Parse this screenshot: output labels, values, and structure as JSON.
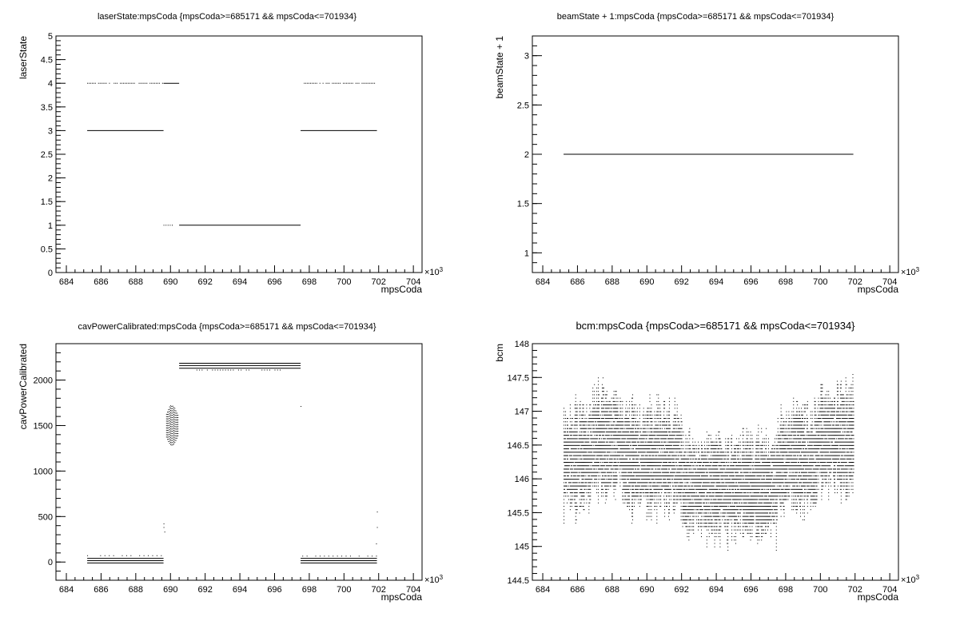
{
  "chart_data": [
    {
      "type": "scatter",
      "title": "laserState:mpsCoda {mpsCoda>=685171 && mpsCoda<=701934}",
      "xlabel": "mpsCoda",
      "ylabel": "laserState",
      "x_exponent": "×10",
      "x_exponent_power": "3",
      "xlim": [
        683.4,
        704.5
      ],
      "ylim": [
        0,
        5
      ],
      "x_ticks": [
        "684",
        "686",
        "688",
        "690",
        "692",
        "694",
        "696",
        "698",
        "700",
        "702",
        "704"
      ],
      "y_ticks": [
        "0",
        "0.5",
        "1",
        "1.5",
        "2",
        "2.5",
        "3",
        "3.5",
        "4",
        "4.5",
        "5"
      ],
      "segments": [
        {
          "x0": 685.2,
          "x1": 689.6,
          "y": 3
        },
        {
          "x0": 690.5,
          "x1": 697.5,
          "y": 1
        },
        {
          "x0": 697.5,
          "x1": 701.9,
          "y": 3
        },
        {
          "x0": 689.6,
          "x1": 690.5,
          "y": 4
        }
      ],
      "dotted_ranges": [
        {
          "x0": 685.2,
          "x1": 689.6,
          "y": 4,
          "step": 0.09
        },
        {
          "x0": 697.6,
          "x1": 701.9,
          "y": 4,
          "step": 0.09
        },
        {
          "x0": 689.6,
          "x1": 690.2,
          "y": 1,
          "step": 0.12
        }
      ]
    },
    {
      "type": "scatter",
      "title": "beamState + 1:mpsCoda {mpsCoda>=685171 && mpsCoda<=701934}",
      "xlabel": "mpsCoda",
      "ylabel": "beamState + 1",
      "x_exponent": "×10",
      "x_exponent_power": "3",
      "xlim": [
        683.4,
        704.5
      ],
      "ylim": [
        0.8,
        3.2
      ],
      "x_ticks": [
        "684",
        "686",
        "688",
        "690",
        "692",
        "694",
        "696",
        "698",
        "700",
        "702",
        "704"
      ],
      "y_ticks": [
        "1",
        "1.5",
        "2",
        "2.5",
        "3"
      ],
      "segments": [
        {
          "x0": 685.2,
          "x1": 701.9,
          "y": 2
        }
      ],
      "dotted_ranges": []
    },
    {
      "type": "scatter",
      "title": "cavPowerCalibrated:mpsCoda {mpsCoda>=685171 && mpsCoda<=701934}",
      "xlabel": "mpsCoda",
      "ylabel": "cavPowerCalibrated",
      "x_exponent": "×10",
      "x_exponent_power": "3",
      "xlim": [
        683.4,
        704.5
      ],
      "ylim": [
        -200,
        2400
      ],
      "x_ticks": [
        "684",
        "686",
        "688",
        "690",
        "692",
        "694",
        "696",
        "698",
        "700",
        "702",
        "704"
      ],
      "y_ticks": [
        "0",
        "500",
        "1000",
        "1500",
        "2000"
      ],
      "y_tick_values": [
        0,
        500,
        1000,
        1500,
        2000
      ],
      "segments": [
        {
          "x0": 685.2,
          "x1": 689.6,
          "y": -10
        },
        {
          "x0": 685.2,
          "x1": 689.6,
          "y": 15
        },
        {
          "x0": 685.2,
          "x1": 689.6,
          "y": 40
        },
        {
          "x0": 690.5,
          "x1": 697.5,
          "y": 2130
        },
        {
          "x0": 690.5,
          "x1": 697.5,
          "y": 2160
        },
        {
          "x0": 690.5,
          "x1": 697.5,
          "y": 2185
        },
        {
          "x0": 697.5,
          "x1": 701.9,
          "y": -10
        },
        {
          "x0": 697.5,
          "x1": 701.9,
          "y": 15
        },
        {
          "x0": 697.5,
          "x1": 701.9,
          "y": 40
        }
      ],
      "dotted_ranges": [
        {
          "x0": 685.2,
          "x1": 689.6,
          "y": 70,
          "step": 0.25
        },
        {
          "x0": 697.6,
          "x1": 701.9,
          "y": 65,
          "step": 0.25
        },
        {
          "x0": 691.5,
          "x1": 696.5,
          "y": 2110,
          "step": 0.15
        }
      ],
      "points": [
        [
          689.6,
          420
        ],
        [
          689.6,
          380
        ],
        [
          689.65,
          330
        ],
        [
          701.9,
          550
        ],
        [
          701.9,
          380
        ],
        [
          701.85,
          200
        ],
        [
          697.5,
          1710
        ]
      ],
      "cluster": {
        "x0": 689.75,
        "x1": 690.45,
        "ymin": 1290,
        "ymax": 1730
      }
    },
    {
      "type": "scatter",
      "title": "bcm:mpsCoda {mpsCoda>=685171 && mpsCoda<=701934}",
      "xlabel": "mpsCoda",
      "ylabel": "bcm",
      "x_exponent": "×10",
      "x_exponent_power": "3",
      "xlim": [
        683.4,
        704.5
      ],
      "ylim": [
        144.5,
        148
      ],
      "x_ticks": [
        "684",
        "686",
        "688",
        "690",
        "692",
        "694",
        "696",
        "698",
        "700",
        "702",
        "704"
      ],
      "y_ticks": [
        "144.5",
        "145",
        "145.5",
        "146",
        "146.5",
        "147",
        "147.5",
        "148"
      ],
      "y_tick_values": [
        144.5,
        145,
        145.5,
        146,
        146.5,
        147,
        147.5,
        148
      ],
      "noise": {
        "x0": 685.2,
        "x1": 701.9,
        "center": 146.3,
        "spread": 0.55,
        "low_regions": [
          [
            692.0,
            697.5,
            145.9
          ]
        ],
        "high_regions": [
          [
            686.8,
            688.6,
            146.55
          ],
          [
            699.8,
            701.9,
            146.6
          ]
        ]
      }
    }
  ]
}
